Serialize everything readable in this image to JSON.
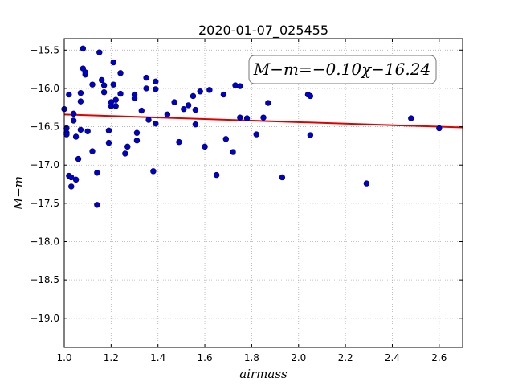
{
  "chart_data": {
    "type": "scatter",
    "title": "2020-01-07_025455",
    "xlabel": "airmass",
    "ylabel": "M−m",
    "xlim": [
      1.0,
      2.7
    ],
    "ylim": [
      -15.35,
      -19.38
    ],
    "y_inverted": true,
    "x_ticks": [
      "1.0",
      "1.2",
      "1.4",
      "1.6",
      "1.8",
      "2.0",
      "2.2",
      "2.4",
      "2.6"
    ],
    "y_ticks": [
      "−15.5",
      "−16.0",
      "−16.5",
      "−17.0",
      "−17.5",
      "−18.0",
      "−18.5",
      "−19.0"
    ],
    "grid": true,
    "annotation": "M−m=−0.10χ−16.24",
    "fit": {
      "slope": -0.1,
      "intercept": -16.24,
      "color": "#e00000"
    },
    "marker_color": "#0000cc",
    "points": [
      [
        1.0,
        -16.27
      ],
      [
        1.01,
        -16.52
      ],
      [
        1.01,
        -16.58
      ],
      [
        1.01,
        -16.6
      ],
      [
        1.02,
        -17.14
      ],
      [
        1.02,
        -16.08
      ],
      [
        1.03,
        -17.16
      ],
      [
        1.03,
        -17.28
      ],
      [
        1.04,
        -16.33
      ],
      [
        1.04,
        -16.42
      ],
      [
        1.05,
        -16.63
      ],
      [
        1.05,
        -17.19
      ],
      [
        1.06,
        -16.92
      ],
      [
        1.07,
        -16.17
      ],
      [
        1.07,
        -16.06
      ],
      [
        1.07,
        -16.54
      ],
      [
        1.08,
        -15.48
      ],
      [
        1.08,
        -15.74
      ],
      [
        1.09,
        -15.82
      ],
      [
        1.09,
        -15.79
      ],
      [
        1.1,
        -16.56
      ],
      [
        1.12,
        -16.82
      ],
      [
        1.12,
        -15.95
      ],
      [
        1.14,
        -17.1
      ],
      [
        1.14,
        -17.52
      ],
      [
        1.15,
        -15.53
      ],
      [
        1.16,
        -15.89
      ],
      [
        1.17,
        -15.96
      ],
      [
        1.17,
        -16.05
      ],
      [
        1.19,
        -16.71
      ],
      [
        1.19,
        -16.55
      ],
      [
        1.2,
        -16.23
      ],
      [
        1.2,
        -16.18
      ],
      [
        1.21,
        -15.66
      ],
      [
        1.21,
        -15.95
      ],
      [
        1.22,
        -16.15
      ],
      [
        1.22,
        -16.23
      ],
      [
        1.24,
        -15.8
      ],
      [
        1.24,
        -16.07
      ],
      [
        1.26,
        -16.85
      ],
      [
        1.27,
        -16.76
      ],
      [
        1.3,
        -16.08
      ],
      [
        1.3,
        -16.13
      ],
      [
        1.31,
        -16.58
      ],
      [
        1.31,
        -16.68
      ],
      [
        1.33,
        -16.29
      ],
      [
        1.35,
        -16.0
      ],
      [
        1.35,
        -15.86
      ],
      [
        1.36,
        -16.41
      ],
      [
        1.38,
        -17.08
      ],
      [
        1.39,
        -15.91
      ],
      [
        1.39,
        -16.01
      ],
      [
        1.39,
        -16.46
      ],
      [
        1.44,
        -16.34
      ],
      [
        1.47,
        -16.18
      ],
      [
        1.49,
        -16.7
      ],
      [
        1.51,
        -16.27
      ],
      [
        1.53,
        -16.22
      ],
      [
        1.55,
        -16.1
      ],
      [
        1.56,
        -16.28
      ],
      [
        1.56,
        -16.47
      ],
      [
        1.58,
        -16.04
      ],
      [
        1.6,
        -16.76
      ],
      [
        1.62,
        -16.02
      ],
      [
        1.65,
        -17.13
      ],
      [
        1.68,
        -16.08
      ],
      [
        1.69,
        -16.66
      ],
      [
        1.72,
        -16.83
      ],
      [
        1.73,
        -15.96
      ],
      [
        1.75,
        -15.97
      ],
      [
        1.75,
        -16.38
      ],
      [
        1.78,
        -16.39
      ],
      [
        1.82,
        -16.6
      ],
      [
        1.85,
        -16.38
      ],
      [
        1.87,
        -16.19
      ],
      [
        1.93,
        -17.16
      ],
      [
        2.04,
        -16.08
      ],
      [
        2.05,
        -16.1
      ],
      [
        2.05,
        -16.61
      ],
      [
        2.29,
        -17.24
      ],
      [
        2.48,
        -16.39
      ],
      [
        2.6,
        -16.52
      ]
    ]
  }
}
